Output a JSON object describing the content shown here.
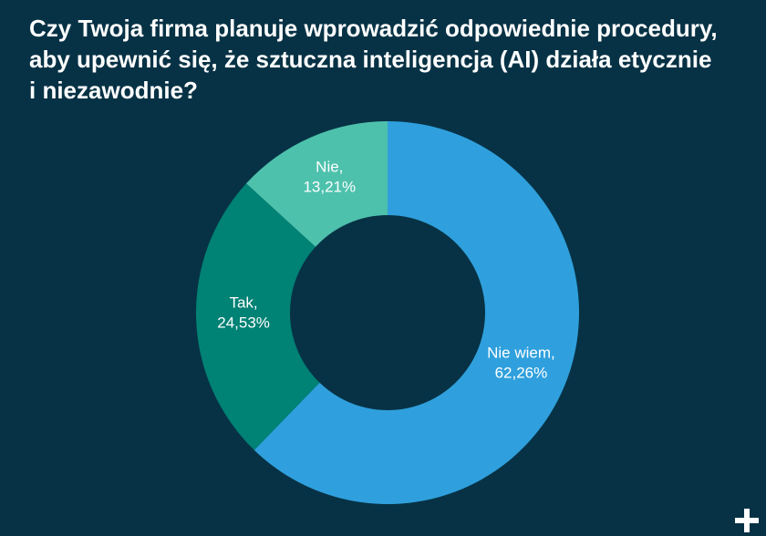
{
  "title_lines": [
    "Czy Twoja firma planuje wprowadzić odpowiednie procedury,",
    "aby upewnić się, że sztuczna inteligencja (AI) działa etycznie",
    "i niezawodnie?"
  ],
  "chart_data": {
    "type": "pie",
    "title": "Czy Twoja firma planuje wprowadzić odpowiednie procedury, aby upewnić się, że sztuczna inteligencja (AI) działa etycznie i niezawodnie?",
    "donut": true,
    "slices": [
      {
        "label": "Nie wiem,",
        "value_text": "62,26%",
        "value": 62.26,
        "color": "#2fa0dd"
      },
      {
        "label": "Tak,",
        "value_text": "24,53%",
        "value": 24.53,
        "color": "#008275"
      },
      {
        "label": "Nie,",
        "value_text": "13,21%",
        "value": 13.21,
        "color": "#4dc1ac"
      }
    ]
  },
  "icons": {
    "corner": "plus-icon"
  }
}
